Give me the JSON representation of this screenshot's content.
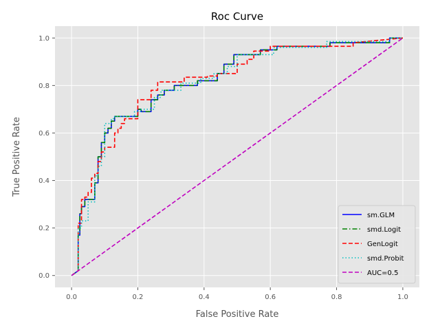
{
  "chart_data": {
    "type": "line",
    "title": "Roc Curve",
    "xlabel": "False Positive Rate",
    "ylabel": "True Positive Rate",
    "xlim": [
      -0.05,
      1.05
    ],
    "ylim": [
      -0.05,
      1.05
    ],
    "xticks": [
      0.0,
      0.2,
      0.4,
      0.6,
      0.8,
      1.0
    ],
    "yticks": [
      0.0,
      0.2,
      0.4,
      0.6,
      0.8,
      1.0
    ],
    "xtick_labels": [
      "0.0",
      "0.2",
      "0.4",
      "0.6",
      "0.8",
      "1.0"
    ],
    "ytick_labels": [
      "0.0",
      "0.2",
      "0.4",
      "0.6",
      "0.8",
      "1.0"
    ],
    "grid": true,
    "legend_position": "bottom-right",
    "background": "#e5e5e5",
    "series": [
      {
        "name": "sm.GLM",
        "color": "#0000ff",
        "dash": "solid",
        "x": [
          0,
          0.02,
          0.02,
          0.025,
          0.025,
          0.03,
          0.03,
          0.04,
          0.04,
          0.07,
          0.07,
          0.08,
          0.08,
          0.09,
          0.09,
          0.1,
          0.1,
          0.11,
          0.11,
          0.12,
          0.12,
          0.13,
          0.13,
          0.2,
          0.2,
          0.21,
          0.21,
          0.24,
          0.24,
          0.26,
          0.26,
          0.28,
          0.28,
          0.31,
          0.31,
          0.38,
          0.38,
          0.44,
          0.44,
          0.46,
          0.46,
          0.49,
          0.49,
          0.57,
          0.57,
          0.62,
          0.62,
          0.78,
          0.78,
          0.96,
          0.96,
          1.0
        ],
        "y": [
          0,
          0.02,
          0.17,
          0.17,
          0.26,
          0.26,
          0.29,
          0.29,
          0.32,
          0.32,
          0.39,
          0.39,
          0.5,
          0.5,
          0.56,
          0.56,
          0.6,
          0.6,
          0.62,
          0.62,
          0.65,
          0.65,
          0.67,
          0.67,
          0.7,
          0.7,
          0.69,
          0.69,
          0.74,
          0.74,
          0.76,
          0.76,
          0.78,
          0.78,
          0.8,
          0.8,
          0.82,
          0.82,
          0.85,
          0.85,
          0.89,
          0.89,
          0.93,
          0.93,
          0.95,
          0.95,
          0.965,
          0.965,
          0.98,
          0.98,
          1.0,
          1.0
        ]
      },
      {
        "name": "smd.Logit",
        "color": "#008000",
        "dash": "dashdot",
        "x": [
          0,
          0.02,
          0.02,
          0.025,
          0.025,
          0.03,
          0.03,
          0.04,
          0.04,
          0.07,
          0.07,
          0.08,
          0.08,
          0.09,
          0.09,
          0.1,
          0.1,
          0.11,
          0.11,
          0.12,
          0.12,
          0.13,
          0.13,
          0.2,
          0.2,
          0.21,
          0.21,
          0.24,
          0.24,
          0.26,
          0.26,
          0.28,
          0.28,
          0.31,
          0.31,
          0.38,
          0.38,
          0.44,
          0.44,
          0.46,
          0.46,
          0.49,
          0.49,
          0.57,
          0.57,
          0.62,
          0.62,
          0.78,
          0.78,
          0.96,
          0.96,
          1.0
        ],
        "y": [
          0,
          0.02,
          0.17,
          0.17,
          0.26,
          0.26,
          0.29,
          0.29,
          0.32,
          0.32,
          0.39,
          0.39,
          0.5,
          0.5,
          0.56,
          0.56,
          0.6,
          0.6,
          0.62,
          0.62,
          0.65,
          0.65,
          0.67,
          0.67,
          0.7,
          0.7,
          0.69,
          0.69,
          0.74,
          0.74,
          0.76,
          0.76,
          0.78,
          0.78,
          0.8,
          0.8,
          0.82,
          0.82,
          0.85,
          0.85,
          0.89,
          0.89,
          0.93,
          0.93,
          0.95,
          0.95,
          0.965,
          0.965,
          0.98,
          0.98,
          1.0,
          1.0
        ]
      },
      {
        "name": "GenLogit",
        "color": "#ff0000",
        "dash": "dashed",
        "x": [
          0,
          0.02,
          0.02,
          0.03,
          0.03,
          0.04,
          0.04,
          0.05,
          0.05,
          0.06,
          0.06,
          0.07,
          0.07,
          0.08,
          0.08,
          0.09,
          0.09,
          0.1,
          0.1,
          0.13,
          0.13,
          0.14,
          0.14,
          0.15,
          0.15,
          0.16,
          0.16,
          0.2,
          0.2,
          0.24,
          0.24,
          0.26,
          0.26,
          0.34,
          0.34,
          0.41,
          0.41,
          0.44,
          0.44,
          0.5,
          0.5,
          0.53,
          0.53,
          0.55,
          0.55,
          0.6,
          0.6,
          0.72,
          0.72,
          0.76,
          0.76,
          0.85,
          0.85,
          1.0
        ],
        "y": [
          0,
          0.02,
          0.22,
          0.22,
          0.32,
          0.32,
          0.33,
          0.33,
          0.35,
          0.35,
          0.41,
          0.41,
          0.43,
          0.43,
          0.48,
          0.48,
          0.52,
          0.52,
          0.54,
          0.54,
          0.6,
          0.6,
          0.62,
          0.62,
          0.64,
          0.64,
          0.66,
          0.66,
          0.74,
          0.74,
          0.78,
          0.78,
          0.815,
          0.815,
          0.835,
          0.835,
          0.84,
          0.84,
          0.85,
          0.85,
          0.89,
          0.89,
          0.91,
          0.91,
          0.945,
          0.945,
          0.965,
          0.965,
          0.965,
          0.965,
          0.965,
          0.965,
          0.98,
          1.0
        ]
      },
      {
        "name": "smd.Probit",
        "color": "#00bfbf",
        "dash": "dotted",
        "x": [
          0,
          0.02,
          0.02,
          0.03,
          0.03,
          0.05,
          0.05,
          0.07,
          0.07,
          0.08,
          0.08,
          0.09,
          0.09,
          0.1,
          0.1,
          0.12,
          0.12,
          0.13,
          0.13,
          0.19,
          0.19,
          0.21,
          0.21,
          0.25,
          0.25,
          0.27,
          0.27,
          0.33,
          0.33,
          0.39,
          0.39,
          0.43,
          0.43,
          0.47,
          0.47,
          0.5,
          0.5,
          0.61,
          0.61,
          0.77,
          0.77,
          0.96,
          0.96,
          1.0
        ],
        "y": [
          0,
          0.02,
          0.2,
          0.2,
          0.23,
          0.23,
          0.31,
          0.31,
          0.42,
          0.42,
          0.46,
          0.46,
          0.5,
          0.5,
          0.64,
          0.64,
          0.66,
          0.66,
          0.67,
          0.67,
          0.69,
          0.69,
          0.7,
          0.7,
          0.75,
          0.75,
          0.78,
          0.78,
          0.81,
          0.81,
          0.83,
          0.83,
          0.85,
          0.85,
          0.88,
          0.88,
          0.93,
          0.93,
          0.96,
          0.96,
          0.985,
          0.985,
          1.0,
          1.0
        ]
      },
      {
        "name": "AUC=0.5",
        "color": "#bf00bf",
        "dash": "dashed",
        "x": [
          0,
          1
        ],
        "y": [
          0,
          1
        ]
      }
    ]
  }
}
